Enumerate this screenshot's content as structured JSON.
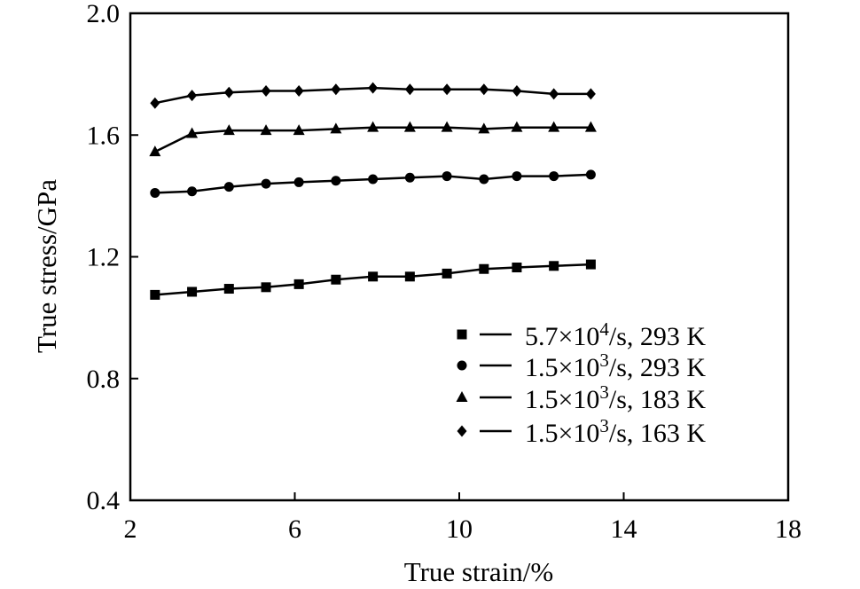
{
  "chart_data": {
    "type": "line",
    "xlabel": "True strain/%",
    "ylabel": "True stress/GPa",
    "xlim": [
      2,
      18
    ],
    "ylim": [
      0.4,
      2.0
    ],
    "xticks": [
      "2",
      "6",
      "10",
      "14",
      "18"
    ],
    "yticks": [
      "0.4",
      "0.8",
      "1.2",
      "1.6",
      "2.0"
    ],
    "grid": false,
    "legend_position": "bottom-right",
    "series": [
      {
        "name": "5.7×10⁴/s, 293 K",
        "legend_rate_base": "5.7×10",
        "legend_rate_exp": "4",
        "legend_rest": "/s, 293 K",
        "marker": "square",
        "x": [
          2.6,
          3.5,
          4.4,
          5.3,
          6.1,
          7.0,
          7.9,
          8.8,
          9.7,
          10.6,
          11.4,
          12.3,
          13.2
        ],
        "y": [
          1.075,
          1.085,
          1.095,
          1.1,
          1.11,
          1.125,
          1.135,
          1.135,
          1.145,
          1.16,
          1.165,
          1.17,
          1.175
        ]
      },
      {
        "name": "1.5×10³/s, 293 K",
        "legend_rate_base": "1.5×10",
        "legend_rate_exp": "3",
        "legend_rest": "/s, 293 K",
        "marker": "circle",
        "x": [
          2.6,
          3.5,
          4.4,
          5.3,
          6.1,
          7.0,
          7.9,
          8.8,
          9.7,
          10.6,
          11.4,
          12.3,
          13.2
        ],
        "y": [
          1.41,
          1.415,
          1.43,
          1.44,
          1.445,
          1.45,
          1.455,
          1.46,
          1.465,
          1.455,
          1.465,
          1.465,
          1.47
        ]
      },
      {
        "name": "1.5×10³/s, 183 K",
        "legend_rate_base": "1.5×10",
        "legend_rate_exp": "3",
        "legend_rest": "/s, 183 K",
        "marker": "triangle",
        "x": [
          2.6,
          3.5,
          4.4,
          5.3,
          6.1,
          7.0,
          7.9,
          8.8,
          9.7,
          10.6,
          11.4,
          12.3,
          13.2
        ],
        "y": [
          1.545,
          1.605,
          1.615,
          1.615,
          1.615,
          1.62,
          1.625,
          1.625,
          1.625,
          1.62,
          1.625,
          1.625,
          1.625
        ]
      },
      {
        "name": "1.5×10³/s, 163 K",
        "legend_rate_base": "1.5×10",
        "legend_rate_exp": "3",
        "legend_rest": "/s, 163 K",
        "marker": "diamond",
        "x": [
          2.6,
          3.5,
          4.4,
          5.3,
          6.1,
          7.0,
          7.9,
          8.8,
          9.7,
          10.6,
          11.4,
          12.3,
          13.2
        ],
        "y": [
          1.705,
          1.73,
          1.74,
          1.745,
          1.745,
          1.75,
          1.755,
          1.75,
          1.75,
          1.75,
          1.745,
          1.735,
          1.735
        ]
      }
    ]
  }
}
